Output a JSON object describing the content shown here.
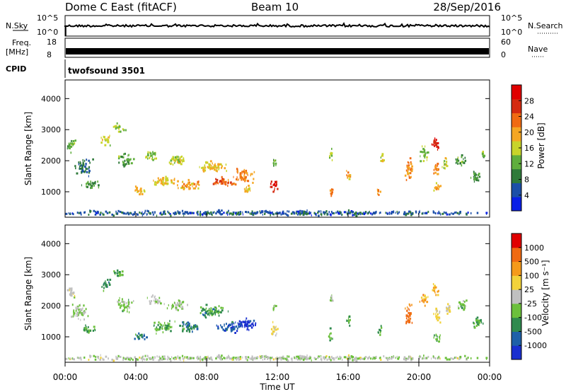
{
  "header": {
    "radar": "Dome C East (fitACF)",
    "beam": "Beam 10",
    "date": "28/Sep/2016"
  },
  "params": {
    "nsky_label": "N.Sky",
    "nsky_ticks": [
      "10^5",
      "10^0"
    ],
    "nsearch_label": "N.Search",
    "nsearch_ticks": [
      "10^5",
      "10^0"
    ],
    "freq_label_1": "Freq.",
    "freq_label_2": "[MHz]",
    "freq_ticks": [
      "18",
      "8"
    ],
    "nave_label": "Nave",
    "nave_ticks": [
      "60",
      "0"
    ],
    "cpid_label": "CPID",
    "cpid_value": "twofsound 3501"
  },
  "time_axis": {
    "label": "Time UT",
    "ticks": [
      "00:00",
      "04:00",
      "08:00",
      "12:00",
      "16:00",
      "20:00",
      "00:00"
    ],
    "range_hours": [
      0,
      24
    ]
  },
  "power_panel": {
    "ylabel": "Slant Range [km]",
    "yticks": [
      "4000",
      "3000",
      "2000",
      "1000"
    ],
    "colorbar_label": "Power [dB]",
    "colorbar_ticks": [
      "28",
      "24",
      "20",
      "16",
      "12",
      "8",
      "4"
    ],
    "colors": [
      "#0a1fe6",
      "#1c4fa8",
      "#2f7a3a",
      "#5fae3c",
      "#c8d42a",
      "#f5a623",
      "#f06a12",
      "#d42a10",
      "#e00000"
    ]
  },
  "velocity_panel": {
    "ylabel": "Slant Range [km]",
    "yticks": [
      "4000",
      "3000",
      "2000",
      "1000"
    ],
    "colorbar_label": "Velocity [m s⁻¹]",
    "colorbar_ticks": [
      "1000",
      "500",
      "100",
      "25",
      "-25",
      "-100",
      "-500",
      "-1000"
    ],
    "colors": [
      "#1a2fd0",
      "#1e60a8",
      "#2f8a4e",
      "#6cc03c",
      "#c0c0c0",
      "#f2d23a",
      "#f59a1a",
      "#f06a12",
      "#e00000"
    ]
  },
  "chart_data": [
    {
      "type": "heatmap",
      "title": "Power",
      "xlabel": "Time UT",
      "ylabel": "Slant Range [km]",
      "xlim_hours": [
        0,
        24
      ],
      "ylim": [
        180,
        4600
      ],
      "zlabel": "Power [dB]",
      "zlim": [
        0,
        32
      ],
      "blobs": [
        {
          "t": 0.3,
          "r": 2500,
          "dt": 0.4,
          "dr": 350,
          "z": 12
        },
        {
          "t": 1.0,
          "r": 1800,
          "dt": 0.8,
          "dr": 400,
          "z": 8
        },
        {
          "t": 1.5,
          "r": 1200,
          "dt": 0.8,
          "dr": 200,
          "z": 10
        },
        {
          "t": 2.3,
          "r": 2650,
          "dt": 0.5,
          "dr": 250,
          "z": 16
        },
        {
          "t": 3.0,
          "r": 3050,
          "dt": 0.6,
          "dr": 200,
          "z": 14
        },
        {
          "t": 3.4,
          "r": 2000,
          "dt": 0.8,
          "dr": 300,
          "z": 12
        },
        {
          "t": 4.2,
          "r": 1000,
          "dt": 0.6,
          "dr": 200,
          "z": 18
        },
        {
          "t": 4.8,
          "r": 2150,
          "dt": 0.6,
          "dr": 250,
          "z": 14
        },
        {
          "t": 5.5,
          "r": 1300,
          "dt": 1.2,
          "dr": 250,
          "z": 18
        },
        {
          "t": 6.3,
          "r": 2000,
          "dt": 1.0,
          "dr": 250,
          "z": 16
        },
        {
          "t": 7.0,
          "r": 1200,
          "dt": 1.0,
          "dr": 250,
          "z": 20
        },
        {
          "t": 8.3,
          "r": 1800,
          "dt": 1.3,
          "dr": 300,
          "z": 18
        },
        {
          "t": 9.0,
          "r": 1300,
          "dt": 1.1,
          "dr": 250,
          "z": 24
        },
        {
          "t": 10.0,
          "r": 1500,
          "dt": 1.0,
          "dr": 350,
          "z": 22
        },
        {
          "t": 10.3,
          "r": 1050,
          "dt": 0.5,
          "dr": 200,
          "z": 18
        },
        {
          "t": 11.8,
          "r": 1200,
          "dt": 0.35,
          "dr": 300,
          "z": 28
        },
        {
          "t": 11.8,
          "r": 1900,
          "dt": 0.2,
          "dr": 250,
          "z": 12
        },
        {
          "t": 15.0,
          "r": 1000,
          "dt": 0.2,
          "dr": 300,
          "z": 22
        },
        {
          "t": 15.0,
          "r": 2200,
          "dt": 0.15,
          "dr": 250,
          "z": 14
        },
        {
          "t": 16.0,
          "r": 1500,
          "dt": 0.2,
          "dr": 350,
          "z": 20
        },
        {
          "t": 17.7,
          "r": 1000,
          "dt": 0.2,
          "dr": 200,
          "z": 22
        },
        {
          "t": 17.9,
          "r": 2100,
          "dt": 0.2,
          "dr": 300,
          "z": 16
        },
        {
          "t": 19.4,
          "r": 1700,
          "dt": 0.4,
          "dr": 500,
          "z": 20
        },
        {
          "t": 20.3,
          "r": 2200,
          "dt": 0.4,
          "dr": 350,
          "z": 14
        },
        {
          "t": 20.9,
          "r": 2500,
          "dt": 0.35,
          "dr": 300,
          "z": 28
        },
        {
          "t": 21.0,
          "r": 1700,
          "dt": 0.3,
          "dr": 400,
          "z": 22
        },
        {
          "t": 21.0,
          "r": 1100,
          "dt": 0.3,
          "dr": 250,
          "z": 20
        },
        {
          "t": 21.5,
          "r": 1900,
          "dt": 0.3,
          "dr": 300,
          "z": 16
        },
        {
          "t": 22.3,
          "r": 2000,
          "dt": 0.6,
          "dr": 250,
          "z": 12
        },
        {
          "t": 23.2,
          "r": 1500,
          "dt": 0.5,
          "dr": 300,
          "z": 10
        },
        {
          "t": 23.6,
          "r": 2200,
          "dt": 0.2,
          "dr": 200,
          "z": 12
        },
        {
          "t": 12.0,
          "r": 300,
          "dt": 24.0,
          "dr": 120,
          "z": 6
        }
      ]
    },
    {
      "type": "heatmap",
      "title": "Velocity",
      "xlabel": "Time UT",
      "ylabel": "Slant Range [km]",
      "xlim_hours": [
        0,
        24
      ],
      "ylim": [
        180,
        4600
      ],
      "zlabel": "Velocity [m s⁻¹]",
      "zlim": [
        -1000,
        1000
      ],
      "blobs": [
        {
          "t": 0.3,
          "r": 2400,
          "dt": 0.4,
          "dr": 350,
          "z": 50
        },
        {
          "t": 0.8,
          "r": 1800,
          "dt": 0.8,
          "dr": 400,
          "z": -100
        },
        {
          "t": 1.3,
          "r": 1200,
          "dt": 0.8,
          "dr": 200,
          "z": -300
        },
        {
          "t": 2.3,
          "r": 2650,
          "dt": 0.5,
          "dr": 250,
          "z": -500
        },
        {
          "t": 3.0,
          "r": 3050,
          "dt": 0.6,
          "dr": 200,
          "z": -300
        },
        {
          "t": 3.4,
          "r": 2000,
          "dt": 0.8,
          "dr": 300,
          "z": -200
        },
        {
          "t": 4.2,
          "r": 1000,
          "dt": 0.6,
          "dr": 200,
          "z": -500
        },
        {
          "t": 5.0,
          "r": 2150,
          "dt": 0.6,
          "dr": 250,
          "z": -50
        },
        {
          "t": 5.5,
          "r": 1300,
          "dt": 1.2,
          "dr": 250,
          "z": -300
        },
        {
          "t": 6.3,
          "r": 2000,
          "dt": 1.0,
          "dr": 250,
          "z": -150
        },
        {
          "t": 7.0,
          "r": 1300,
          "dt": 1.0,
          "dr": 250,
          "z": -500
        },
        {
          "t": 8.3,
          "r": 1800,
          "dt": 1.3,
          "dr": 300,
          "z": -400
        },
        {
          "t": 9.3,
          "r": 1300,
          "dt": 1.3,
          "dr": 250,
          "z": -700
        },
        {
          "t": 10.2,
          "r": 1400,
          "dt": 1.0,
          "dr": 300,
          "z": -900
        },
        {
          "t": 11.8,
          "r": 1200,
          "dt": 0.35,
          "dr": 300,
          "z": 150
        },
        {
          "t": 11.8,
          "r": 1900,
          "dt": 0.2,
          "dr": 250,
          "z": -200
        },
        {
          "t": 15.0,
          "r": 1000,
          "dt": 0.2,
          "dr": 300,
          "z": -300
        },
        {
          "t": 15.0,
          "r": 2200,
          "dt": 0.15,
          "dr": 250,
          "z": -100
        },
        {
          "t": 16.0,
          "r": 1500,
          "dt": 0.2,
          "dr": 350,
          "z": -300
        },
        {
          "t": 17.8,
          "r": 1200,
          "dt": 0.2,
          "dr": 250,
          "z": -400
        },
        {
          "t": 19.4,
          "r": 1700,
          "dt": 0.4,
          "dr": 500,
          "z": 600
        },
        {
          "t": 20.3,
          "r": 2200,
          "dt": 0.4,
          "dr": 350,
          "z": 400
        },
        {
          "t": 20.9,
          "r": 2500,
          "dt": 0.35,
          "dr": 300,
          "z": 300
        },
        {
          "t": 21.0,
          "r": 1700,
          "dt": 0.3,
          "dr": 400,
          "z": 200
        },
        {
          "t": 21.0,
          "r": 1000,
          "dt": 0.3,
          "dr": 250,
          "z": -300
        },
        {
          "t": 21.6,
          "r": 1900,
          "dt": 0.3,
          "dr": 300,
          "z": 100
        },
        {
          "t": 22.4,
          "r": 2000,
          "dt": 0.6,
          "dr": 250,
          "z": -200
        },
        {
          "t": 23.3,
          "r": 1500,
          "dt": 0.5,
          "dr": 300,
          "z": -300
        },
        {
          "t": 12.0,
          "r": 300,
          "dt": 24.0,
          "dr": 120,
          "z": -50
        }
      ]
    }
  ]
}
